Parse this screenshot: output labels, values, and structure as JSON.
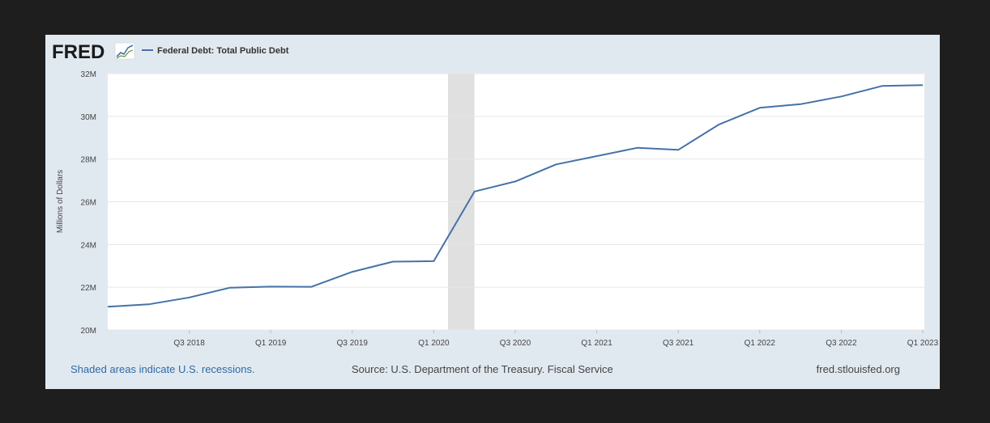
{
  "header": {
    "brand": "FRED",
    "legend_label": "Federal Debt: Total Public Debt"
  },
  "chart_data": {
    "type": "line",
    "title": "Federal Debt: Total Public Debt",
    "xlabel": "",
    "ylabel": "Millions of Dollars",
    "ylim": [
      20,
      32
    ],
    "y_unit": "M",
    "y_ticks": [
      20,
      22,
      24,
      26,
      28,
      30,
      32
    ],
    "y_tick_labels": [
      "20M",
      "22M",
      "24M",
      "26M",
      "28M",
      "30M",
      "32M"
    ],
    "x_tick_labels": [
      "Q3 2018",
      "Q1 2019",
      "Q3 2019",
      "Q1 2020",
      "Q3 2020",
      "Q1 2021",
      "Q3 2021",
      "Q1 2022",
      "Q3 2022",
      "Q1 2023"
    ],
    "x_tick_quarter_index": [
      2,
      4,
      6,
      8,
      10,
      12,
      14,
      16,
      18,
      20
    ],
    "x_range_quarter_index": [
      0,
      20.04
    ],
    "recession": {
      "start_quarter_index": 8.35,
      "end_quarter_index": 9.0
    },
    "series": [
      {
        "name": "Federal Debt: Total Public Debt",
        "color": "#4572a7",
        "x": [
          "Q1 2018",
          "Q2 2018",
          "Q3 2018",
          "Q4 2018",
          "Q1 2019",
          "Q2 2019",
          "Q3 2019",
          "Q4 2019",
          "Q1 2020",
          "Q2 2020",
          "Q3 2020",
          "Q4 2020",
          "Q1 2021",
          "Q2 2021",
          "Q3 2021",
          "Q4 2021",
          "Q1 2022",
          "Q2 2022",
          "Q3 2022",
          "Q4 2022",
          "Q1 2023"
        ],
        "values": [
          21.09,
          21.2,
          21.52,
          21.98,
          22.03,
          22.02,
          22.72,
          23.2,
          23.22,
          26.48,
          26.95,
          27.75,
          28.14,
          28.53,
          28.43,
          29.62,
          30.4,
          30.57,
          30.93,
          31.42,
          31.46
        ]
      }
    ]
  },
  "footer": {
    "recession_note": "Shaded areas indicate U.S. recessions.",
    "source": "Source: U.S. Department of the Treasury. Fiscal Service",
    "url": "fred.stlouisfed.org"
  },
  "colors": {
    "background": "#1e1e1e",
    "card": "#e1e9f0",
    "plot": "#ffffff",
    "recession": "#e0e0e0",
    "line": "#4572a7",
    "grid": "#e6e6e6",
    "link": "#2f69a6",
    "text": "#444444"
  }
}
